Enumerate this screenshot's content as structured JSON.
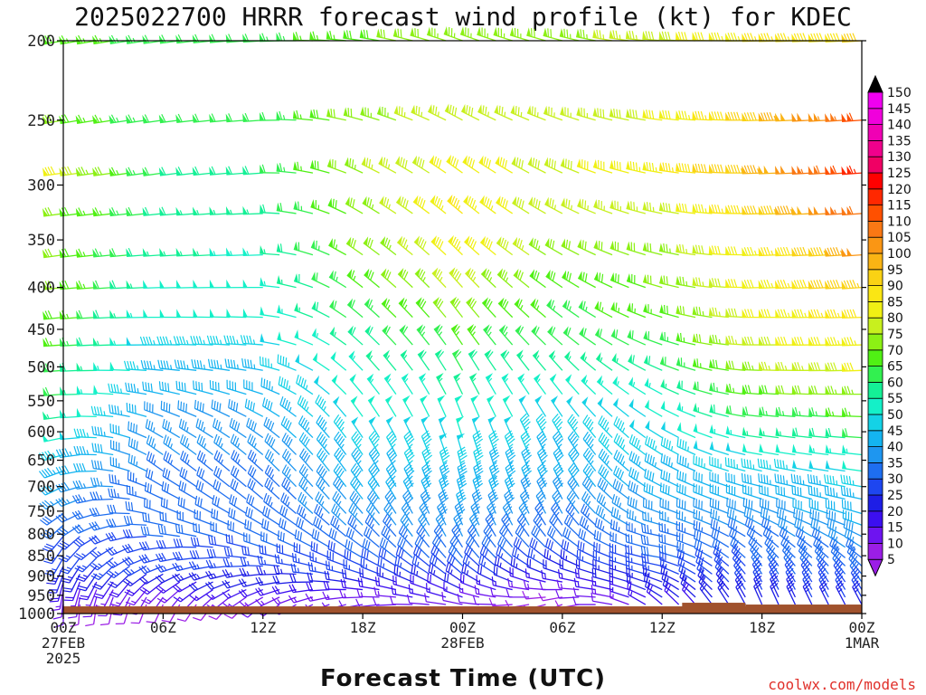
{
  "title": "2025022700 HRRR forecast wind profile (kt) for KDEC",
  "credit": "coolwx.com/models",
  "chart_data": {
    "type": "wind_barbs",
    "title": "2025022700 HRRR forecast wind profile (kt) for KDEC",
    "xlabel": "Forecast Time (UTC)",
    "ylabel": "",
    "units": "kt",
    "y_axis": {
      "scale": "pressure",
      "ticks": [
        200,
        250,
        300,
        350,
        400,
        450,
        500,
        550,
        600,
        650,
        700,
        750,
        800,
        850,
        900,
        950,
        1000
      ],
      "tick_labels": [
        "200",
        "250",
        "300",
        "350",
        "400",
        "450",
        "500",
        "550",
        "600",
        "650",
        "700",
        "750",
        "800",
        "850",
        "900",
        "950",
        "1000"
      ],
      "range": [
        200,
        1000
      ]
    },
    "x_axis": {
      "range_hours": [
        0,
        48
      ],
      "ticks_hours": [
        0,
        6,
        12,
        18,
        24,
        30,
        36,
        42,
        48
      ],
      "tick_labels": [
        [
          "00Z",
          "27FEB",
          "2025"
        ],
        [
          "06Z"
        ],
        [
          "12Z"
        ],
        [
          "18Z"
        ],
        [
          "00Z",
          "28FEB"
        ],
        [
          "06Z"
        ],
        [
          "12Z"
        ],
        [
          "18Z"
        ],
        [
          "00Z",
          "1MAR"
        ]
      ]
    },
    "colorbar": {
      "levels": [
        5,
        10,
        15,
        20,
        25,
        30,
        35,
        40,
        45,
        50,
        55,
        60,
        65,
        70,
        75,
        80,
        85,
        90,
        95,
        100,
        105,
        110,
        115,
        120,
        125,
        130,
        135,
        140,
        145,
        150
      ],
      "colors": [
        "#9b1ee6",
        "#6e14f0",
        "#3c0ff0",
        "#1e1ee6",
        "#1e46f0",
        "#1e6ef0",
        "#1e96f0",
        "#14b4f0",
        "#14d2e6",
        "#14f0c8",
        "#14f096",
        "#32f050",
        "#50f014",
        "#8cf014",
        "#c8f01e",
        "#f0f014",
        "#fae614",
        "#fad214",
        "#fab414",
        "#fa9614",
        "#fa7814",
        "#ff5000",
        "#ff2800",
        "#ff0000",
        "#f00064",
        "#f0008c",
        "#f000b4",
        "#f000dc",
        "#f000f0",
        "#f000f0"
      ]
    },
    "levels_hpa": [
      200,
      250,
      290,
      325,
      365,
      400,
      435,
      470,
      505,
      540,
      575,
      610,
      640,
      670,
      700,
      725,
      755,
      780,
      805,
      830,
      855,
      875,
      895,
      915,
      935,
      955,
      975
    ],
    "profiles": [
      {
        "hour": 0,
        "speed": [
          68,
          70,
          82,
          72,
          70,
          72,
          68,
          66,
          62,
          60,
          56,
          50,
          46,
          44,
          40,
          36,
          32,
          30,
          28,
          26,
          26,
          24,
          20,
          18,
          14,
          12,
          10
        ],
        "dir": [
          260,
          260,
          262,
          262,
          262,
          264,
          264,
          266,
          266,
          266,
          262,
          258,
          254,
          250,
          245,
          240,
          235,
          228,
          220,
          215,
          210,
          205,
          200,
          195,
          190,
          185,
          180
        ]
      },
      {
        "hour": 6,
        "speed": [
          62,
          62,
          60,
          58,
          56,
          52,
          50,
          46,
          44,
          40,
          38,
          36,
          36,
          34,
          32,
          32,
          30,
          30,
          30,
          28,
          28,
          26,
          22,
          18,
          14,
          10,
          8
        ],
        "dir": [
          262,
          262,
          262,
          264,
          266,
          268,
          270,
          270,
          275,
          282,
          290,
          300,
          305,
          305,
          300,
          295,
          290,
          282,
          275,
          262,
          255,
          248,
          240,
          232,
          225,
          215,
          205
        ]
      },
      {
        "hour": 12,
        "speed": [
          62,
          60,
          58,
          56,
          54,
          52,
          50,
          46,
          44,
          42,
          40,
          38,
          36,
          34,
          32,
          32,
          32,
          30,
          30,
          30,
          28,
          26,
          24,
          22,
          18,
          14,
          10
        ],
        "dir": [
          266,
          266,
          266,
          268,
          268,
          270,
          272,
          274,
          280,
          288,
          298,
          305,
          310,
          312,
          312,
          310,
          305,
          300,
          295,
          288,
          280,
          272,
          264,
          256,
          248,
          240,
          230
        ]
      },
      {
        "hour": 18,
        "speed": [
          68,
          72,
          74,
          72,
          70,
          66,
          62,
          58,
          54,
          52,
          50,
          48,
          46,
          44,
          42,
          40,
          38,
          36,
          34,
          32,
          30,
          28,
          26,
          22,
          18,
          14,
          10
        ],
        "dir": [
          278,
          285,
          295,
          300,
          305,
          308,
          310,
          312,
          316,
          320,
          324,
          326,
          326,
          326,
          324,
          322,
          320,
          316,
          312,
          306,
          300,
          294,
          288,
          282,
          276,
          268,
          260
        ]
      },
      {
        "hour": 24,
        "speed": [
          74,
          78,
          82,
          86,
          84,
          78,
          72,
          66,
          60,
          56,
          52,
          50,
          48,
          46,
          44,
          42,
          40,
          38,
          36,
          34,
          32,
          30,
          28,
          24,
          20,
          16,
          12
        ],
        "dir": [
          290,
          298,
          306,
          310,
          314,
          318,
          322,
          326,
          330,
          334,
          338,
          342,
          344,
          346,
          346,
          344,
          342,
          338,
          334,
          328,
          322,
          316,
          310,
          304,
          296,
          290,
          282
        ]
      },
      {
        "hour": 30,
        "speed": [
          72,
          76,
          78,
          76,
          72,
          68,
          64,
          60,
          56,
          52,
          48,
          46,
          44,
          42,
          40,
          38,
          36,
          34,
          32,
          30,
          28,
          24,
          20,
          16,
          12,
          8,
          6
        ],
        "dir": [
          285,
          290,
          295,
          298,
          300,
          304,
          308,
          312,
          318,
          322,
          326,
          330,
          332,
          334,
          334,
          332,
          330,
          326,
          320,
          312,
          304,
          296,
          288,
          280,
          270,
          260,
          250
        ]
      },
      {
        "hour": 36,
        "speed": [
          78,
          80,
          84,
          76,
          72,
          70,
          66,
          62,
          58,
          54,
          50,
          48,
          46,
          44,
          42,
          40,
          38,
          36,
          34,
          32,
          30,
          28,
          26,
          24,
          22,
          20,
          18
        ],
        "dir": [
          275,
          278,
          280,
          282,
          284,
          286,
          288,
          290,
          294,
          298,
          300,
          302,
          302,
          300,
          298,
          294,
          290,
          286,
          282,
          280,
          280,
          282,
          286,
          290,
          296,
          302,
          310
        ]
      },
      {
        "hour": 42,
        "speed": [
          86,
          92,
          96,
          90,
          84,
          82,
          80,
          78,
          74,
          68,
          62,
          56,
          50,
          46,
          42,
          40,
          38,
          36,
          34,
          32,
          32,
          30,
          30,
          28,
          26,
          24,
          22
        ],
        "dir": [
          268,
          268,
          268,
          268,
          268,
          268,
          270,
          270,
          272,
          274,
          276,
          278,
          280,
          282,
          284,
          288,
          292,
          298,
          304,
          312,
          318,
          324,
          328,
          332,
          334,
          336,
          336
        ]
      },
      {
        "hour": 48,
        "speed": [
          90,
          110,
          115,
          108,
          100,
          94,
          88,
          84,
          80,
          74,
          66,
          60,
          54,
          50,
          46,
          44,
          42,
          40,
          38,
          36,
          34,
          32,
          30,
          30,
          28,
          26,
          24
        ],
        "dir": [
          266,
          266,
          266,
          266,
          266,
          266,
          268,
          268,
          268,
          270,
          272,
          274,
          276,
          278,
          280,
          282,
          286,
          290,
          296,
          302,
          308,
          314,
          320,
          324,
          328,
          330,
          332
        ]
      }
    ],
    "ground": {
      "color": "#a0522d"
    }
  }
}
